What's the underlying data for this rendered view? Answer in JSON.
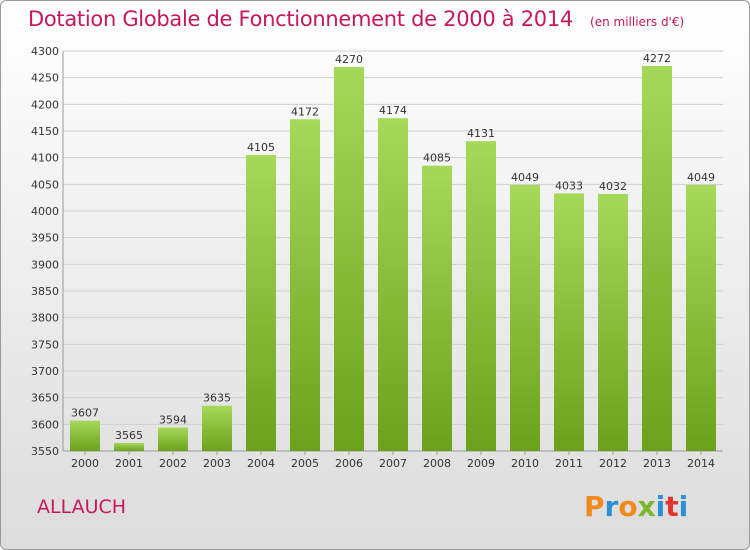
{
  "header": {
    "title": "Dotation Globale de Fonctionnement de 2000 à 2014",
    "subtitle": "(en milliers d'€)"
  },
  "footer": {
    "commune": "ALLAUCH",
    "brand": [
      "P",
      "r",
      "o",
      "x",
      "i",
      "t",
      "i"
    ]
  },
  "colors": {
    "title": "#c8175d",
    "bar_light": "#a6d85a",
    "bar_dark": "#6aa21c",
    "grid": "#d0d0d0",
    "brand": [
      "#f08a1c",
      "#2b8fd6",
      "#f08a1c",
      "#7bb62c",
      "#2b8fd6",
      "#e0342c",
      "#2b8fd6"
    ]
  },
  "chart_data": {
    "type": "bar",
    "title": "Dotation Globale de Fonctionnement de 2000 à 2014",
    "subtitle": "(en milliers d'€)",
    "categories": [
      "2000",
      "2001",
      "2002",
      "2003",
      "2004",
      "2005",
      "2006",
      "2007",
      "2008",
      "2009",
      "2010",
      "2011",
      "2012",
      "2013",
      "2014"
    ],
    "values": [
      3607,
      3565,
      3594,
      3635,
      4105,
      4172,
      4270,
      4174,
      4085,
      4131,
      4049,
      4033,
      4032,
      4272,
      4049
    ],
    "ylim": [
      3550,
      4300
    ],
    "yticks": [
      3550,
      3600,
      3650,
      3700,
      3750,
      3800,
      3850,
      3900,
      3950,
      4000,
      4050,
      4100,
      4150,
      4200,
      4250,
      4300
    ],
    "grid": true,
    "xlabel": "",
    "ylabel": ""
  }
}
